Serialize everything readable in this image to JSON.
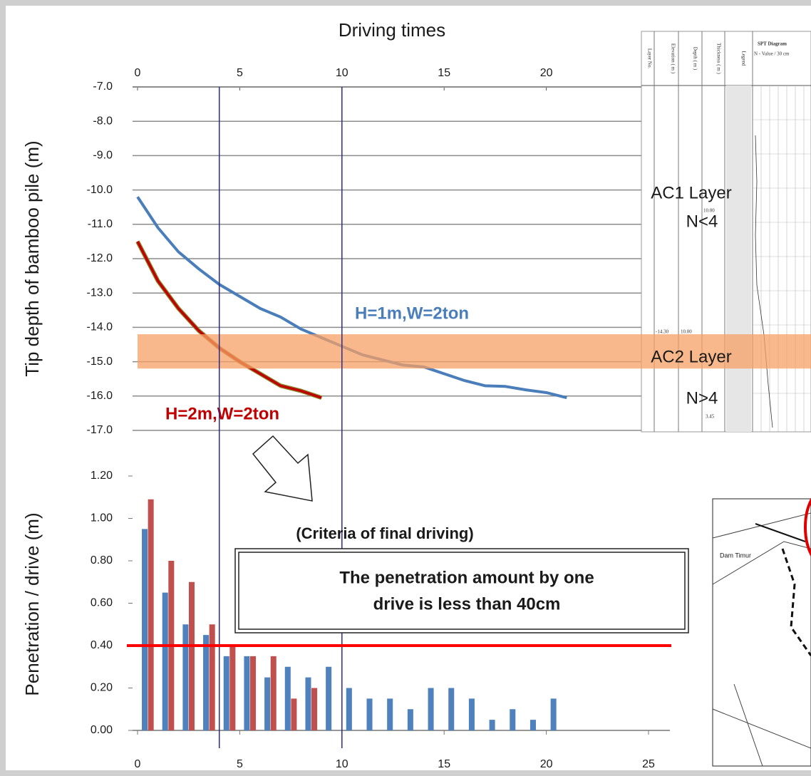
{
  "chart_data": [
    {
      "type": "line",
      "title": "Driving times",
      "y_label": "Tip depth of bamboo pile (m)",
      "x": [
        0,
        1,
        2,
        3,
        4,
        5,
        6,
        7,
        8,
        9,
        10,
        11,
        12,
        13,
        14,
        15,
        16,
        17,
        18,
        19,
        20,
        21
      ],
      "xlim": [
        0,
        25
      ],
      "xticks": [
        0,
        5,
        10,
        15,
        20,
        25
      ],
      "ylim": [
        -17,
        -7
      ],
      "yticks": [
        {
          "value": -7,
          "label": "-7.0"
        },
        {
          "value": -8,
          "label": "-8.0"
        },
        {
          "value": -9,
          "label": "-9.0"
        },
        {
          "value": -10,
          "label": "-10.0"
        },
        {
          "value": -11,
          "label": "-11.0"
        },
        {
          "value": -12,
          "label": "-12.0"
        },
        {
          "value": -13,
          "label": "-13.0"
        },
        {
          "value": -14,
          "label": "-14.0"
        },
        {
          "value": -15,
          "label": "-15.0"
        },
        {
          "value": -16,
          "label": "-16.0"
        },
        {
          "value": -17,
          "label": "-17.0"
        }
      ],
      "grid": true,
      "series": [
        {
          "name": "H=1m,W=2ton",
          "color": "#4a7ebb",
          "values": [
            -10.2,
            -11.1,
            -11.8,
            -12.3,
            -12.75,
            -13.1,
            -13.45,
            -13.7,
            -14.05,
            -14.3,
            -14.55,
            -14.8,
            -14.95,
            -15.1,
            -15.15,
            -15.35,
            -15.55,
            -15.7,
            -15.72,
            -15.82,
            -15.9,
            -16.05
          ]
        },
        {
          "name": "H=2m,W=2ton",
          "color": "#c00000",
          "values": [
            -11.5,
            -12.65,
            -13.45,
            -14.1,
            -14.6,
            -15.0,
            -15.35,
            -15.7,
            -15.85,
            -16.05,
            null,
            null,
            null,
            null,
            null,
            null,
            null,
            null,
            null,
            null,
            null,
            null
          ]
        }
      ],
      "band": {
        "from": -14.2,
        "to": -15.2,
        "color": "#f7a064"
      },
      "vlines": [
        4,
        10
      ],
      "annotations": [
        "AC1 Layer",
        "N<4",
        "AC2 Layer",
        "N>4"
      ]
    },
    {
      "type": "bar",
      "y_label": "Penetration / drive (m)",
      "x": [
        0,
        1,
        2,
        3,
        4,
        5,
        6,
        7,
        8,
        9,
        10,
        11,
        12,
        13,
        14,
        15,
        16,
        17,
        18,
        19,
        20
      ],
      "xlim": [
        0,
        25
      ],
      "xticks": [
        0,
        5,
        10,
        15,
        20,
        25
      ],
      "ylim": [
        0,
        1.2
      ],
      "yticks": [
        {
          "value": 0,
          "label": "0.00"
        },
        {
          "value": 0.2,
          "label": "0.20"
        },
        {
          "value": 0.4,
          "label": "0.40"
        },
        {
          "value": 0.6,
          "label": "0.60"
        },
        {
          "value": 0.8,
          "label": "0.80"
        },
        {
          "value": 1.0,
          "label": "1.00"
        },
        {
          "value": 1.2,
          "label": "1.20"
        }
      ],
      "series": [
        {
          "color": "#4f81bd",
          "values": [
            0.95,
            0.65,
            0.5,
            0.45,
            0.35,
            0.35,
            0.25,
            0.3,
            0.25,
            0.3,
            0.2,
            0.15,
            0.15,
            0.1,
            0.2,
            0.2,
            0.15,
            0.05,
            0.1,
            0.05,
            0.15
          ]
        },
        {
          "color": "#c0504d",
          "values": [
            1.09,
            0.8,
            0.7,
            0.5,
            0.4,
            0.35,
            0.35,
            0.15,
            0.2,
            null,
            null,
            null,
            null,
            null,
            null,
            null,
            null,
            null,
            null,
            null,
            null
          ]
        }
      ],
      "threshold": 0.4,
      "threshold_color": "#ff0000",
      "annotation": "(Criteria of final driving)",
      "note": [
        "The penetration amount by one",
        "drive is less than 40cm"
      ]
    }
  ],
  "images": {
    "spt_header": [
      "Layer No.",
      "Elevation ( m )",
      "Depth ( m )",
      "Thickness ( m )",
      "Legend",
      "SPT Diagram",
      "N - Value / 30 cm"
    ],
    "spt_values": [
      "10.00",
      "-14.30",
      "10.00",
      "3.45"
    ],
    "map_label": "Dam Timur"
  }
}
